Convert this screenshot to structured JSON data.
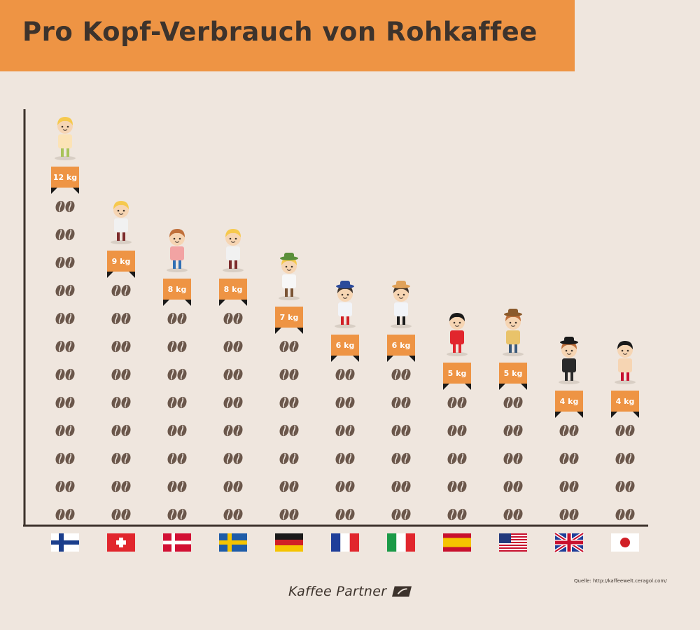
{
  "title": "Pro Kopf-Verbrauch von Rohkaffee",
  "brand": "Kaffee Partner",
  "source": "Quelle: http://kaffeewelt.ceragol.com/",
  "colors": {
    "banner": "#EE9444",
    "label": "#EE9444",
    "bean": "#6B574B",
    "axis": "#3D332C",
    "background": "#EFE6DE"
  },
  "chart_data": {
    "type": "bar",
    "unit": "kg",
    "categories": [
      "Finnland",
      "Schweiz",
      "Dänemark",
      "Schweden",
      "Deutschland",
      "Frankreich",
      "Italien",
      "Spanien",
      "USA",
      "Großbritannien",
      "Japan"
    ],
    "flag_icons": [
      "flag-finland-icon",
      "flag-switzerland-icon",
      "flag-denmark-icon",
      "flag-sweden-icon",
      "flag-germany-icon",
      "flag-france-icon",
      "flag-italy-icon",
      "flag-spain-icon",
      "flag-usa-icon",
      "flag-uk-icon",
      "flag-japan-icon"
    ],
    "figure_icons": [
      "sauna-figure-icon",
      "cuckoo-clock-figure-icon",
      "mermaid-figure-icon",
      "cuckoo-clock-figure-icon",
      "lederhosen-figure-icon",
      "beret-figure-icon",
      "gondolier-figure-icon",
      "flamenco-figure-icon",
      "cowboy-figure-icon",
      "bowler-hat-figure-icon",
      "sumo-figure-icon"
    ],
    "values": [
      12,
      9,
      8,
      8,
      7,
      6,
      6,
      5,
      5,
      4,
      4
    ],
    "labels": [
      "12 kg",
      "9 kg",
      "8 kg",
      "8 kg",
      "7 kg",
      "6 kg",
      "6 kg",
      "5 kg",
      "5 kg",
      "4 kg",
      "4 kg"
    ],
    "ylim": [
      0,
      12
    ]
  }
}
